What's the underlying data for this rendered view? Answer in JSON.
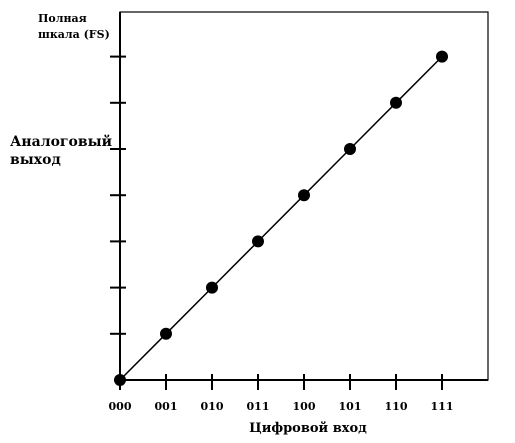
{
  "chart_data": {
    "type": "line",
    "title": "",
    "xlabel": "Цифровой вход",
    "ylabel": "Аналоговый выход",
    "ylabel_lines": [
      "Аналоговый",
      "выход"
    ],
    "fullscale_label_lines": [
      "Полная",
      "шкала (FS)"
    ],
    "categories": [
      "000",
      "001",
      "010",
      "011",
      "100",
      "101",
      "110",
      "111"
    ],
    "x": [
      0,
      1,
      2,
      3,
      4,
      5,
      6,
      7
    ],
    "y": [
      0,
      1,
      2,
      3,
      4,
      5,
      6,
      7
    ],
    "ylim": [
      0,
      7
    ],
    "xlim": [
      0,
      8
    ],
    "grid": false,
    "marker_color": "#000000",
    "line_color": "#000000"
  }
}
